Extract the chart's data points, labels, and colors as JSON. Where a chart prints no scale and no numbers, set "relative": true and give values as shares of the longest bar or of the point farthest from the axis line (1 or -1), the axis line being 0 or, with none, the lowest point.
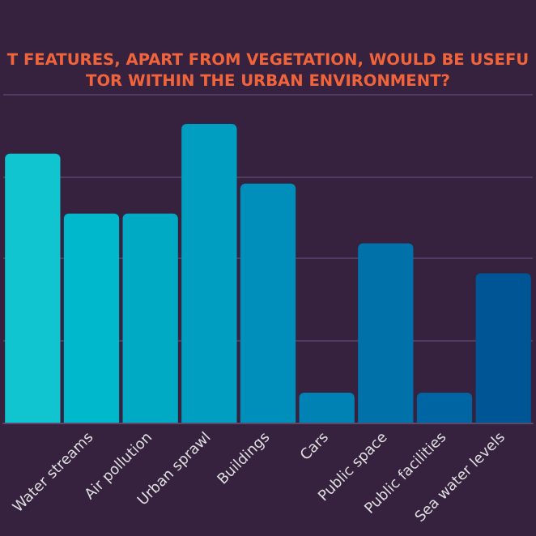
{
  "chart_data": {
    "type": "bar",
    "title": "T FEATURES, APART FROM VEGETATION, WOULD BE USEFU\nTOR WITHIN THE URBAN ENVIRONMENT?",
    "relative": true,
    "grid": "y",
    "categories": [
      null,
      "Water streams",
      "Air pollution",
      "Urban sprawl",
      "Buildings",
      "Cars",
      "Public space",
      "Public facilities",
      "Sea water levels"
    ],
    "values": [
      0.9,
      0.7,
      0.7,
      1,
      0.8,
      0.1,
      0.6,
      0.1,
      0.5
    ],
    "colors": [
      "#10c5cf",
      "#00b8cb",
      "#00aac5",
      "#009fc2",
      "#008fbb",
      "#0082b5",
      "#0072a9",
      "#0066a3",
      "#005595"
    ]
  }
}
